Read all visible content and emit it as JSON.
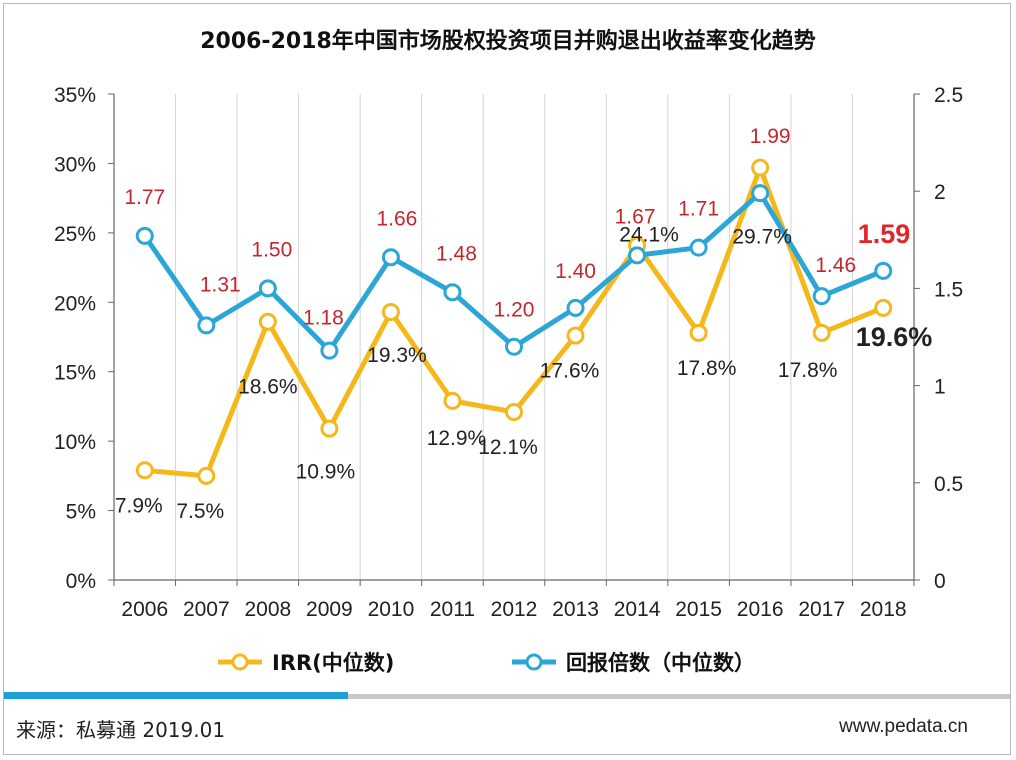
{
  "chart_data": {
    "type": "line",
    "title": "2006-2018年中国市场股权投资项目并购退出收益率变化趋势",
    "categories": [
      "2006",
      "2007",
      "2008",
      "2009",
      "2010",
      "2011",
      "2012",
      "2013",
      "2014",
      "2015",
      "2016",
      "2017",
      "2018"
    ],
    "left_axis": {
      "ticks": [
        "0%",
        "5%",
        "10%",
        "15%",
        "20%",
        "25%",
        "30%",
        "35%"
      ],
      "min": 0,
      "max": 35
    },
    "right_axis": {
      "ticks": [
        "0",
        "0.5",
        "1",
        "1.5",
        "2",
        "2.5"
      ],
      "min": 0,
      "max": 2.5
    },
    "series": [
      {
        "name": "IRR(中位数)",
        "axis": "left",
        "color": "#f5b81c",
        "values": [
          7.9,
          7.5,
          18.6,
          10.9,
          19.3,
          12.9,
          12.1,
          17.6,
          24.1,
          17.8,
          29.7,
          17.8,
          19.6
        ],
        "labels": [
          "7.9%",
          "7.5%",
          "18.6%",
          "10.9%",
          "19.3%",
          "12.9%",
          "12.1%",
          "17.6%",
          "24.1%",
          "17.8%",
          "29.7%",
          "17.8%",
          "19.6%"
        ]
      },
      {
        "name": "回报倍数（中位数）",
        "axis": "right",
        "color": "#2ba6d6",
        "values": [
          1.77,
          1.31,
          1.5,
          1.18,
          1.66,
          1.48,
          1.2,
          1.4,
          1.67,
          1.71,
          1.99,
          1.46,
          1.59
        ],
        "labels": [
          "1.77",
          "1.31",
          "1.50",
          "1.18",
          "1.66",
          "1.48",
          "1.20",
          "1.40",
          "1.67",
          "1.71",
          "1.99",
          "1.46",
          "1.59"
        ]
      }
    ],
    "legend": [
      "IRR(中位数)",
      "回报倍数（中位数）"
    ],
    "grid": "vertical"
  },
  "footer": {
    "source": "来源：私募通 2019.01",
    "site": "www.pedata.cn"
  },
  "colors": {
    "irr": "#f5b81c",
    "multiple": "#2ba6d6",
    "multiple_label": "#c0282e",
    "highlight_label": "#e0262b",
    "bar_blue": "#1e9fd8",
    "bar_grey": "#c8c8c8"
  }
}
